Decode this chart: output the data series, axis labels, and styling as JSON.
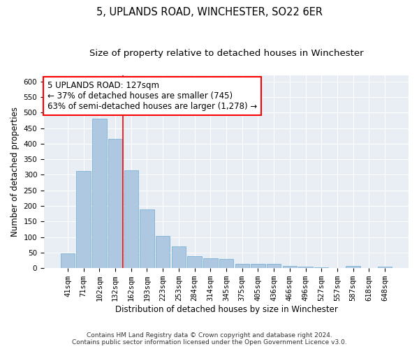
{
  "title": "5, UPLANDS ROAD, WINCHESTER, SO22 6ER",
  "subtitle": "Size of property relative to detached houses in Winchester",
  "xlabel": "Distribution of detached houses by size in Winchester",
  "ylabel": "Number of detached properties",
  "categories": [
    "41sqm",
    "71sqm",
    "102sqm",
    "132sqm",
    "162sqm",
    "193sqm",
    "223sqm",
    "253sqm",
    "284sqm",
    "314sqm",
    "345sqm",
    "375sqm",
    "405sqm",
    "436sqm",
    "466sqm",
    "496sqm",
    "527sqm",
    "557sqm",
    "587sqm",
    "618sqm",
    "648sqm"
  ],
  "values": [
    47,
    312,
    480,
    415,
    315,
    190,
    103,
    71,
    38,
    33,
    30,
    14,
    13,
    15,
    7,
    5,
    2,
    0,
    7,
    1,
    5
  ],
  "bar_color": "#adc8e0",
  "bar_edgecolor": "#6aaad4",
  "vline_x_index": 3,
  "vline_color": "red",
  "annotation_text": "5 UPLANDS ROAD: 127sqm\n← 37% of detached houses are smaller (745)\n63% of semi-detached houses are larger (1,278) →",
  "annotation_box_edgecolor": "red",
  "annotation_fontsize": 8.5,
  "title_fontsize": 10.5,
  "subtitle_fontsize": 9.5,
  "xlabel_fontsize": 8.5,
  "ylabel_fontsize": 8.5,
  "tick_fontsize": 7.5,
  "ylim": [
    0,
    620
  ],
  "yticks": [
    0,
    50,
    100,
    150,
    200,
    250,
    300,
    350,
    400,
    450,
    500,
    550,
    600
  ],
  "footer1": "Contains HM Land Registry data © Crown copyright and database right 2024.",
  "footer2": "Contains public sector information licensed under the Open Government Licence v3.0.",
  "bg_color": "#e8eef4",
  "plot_bg_color": "#ffffff",
  "grid_color": "#ffffff"
}
